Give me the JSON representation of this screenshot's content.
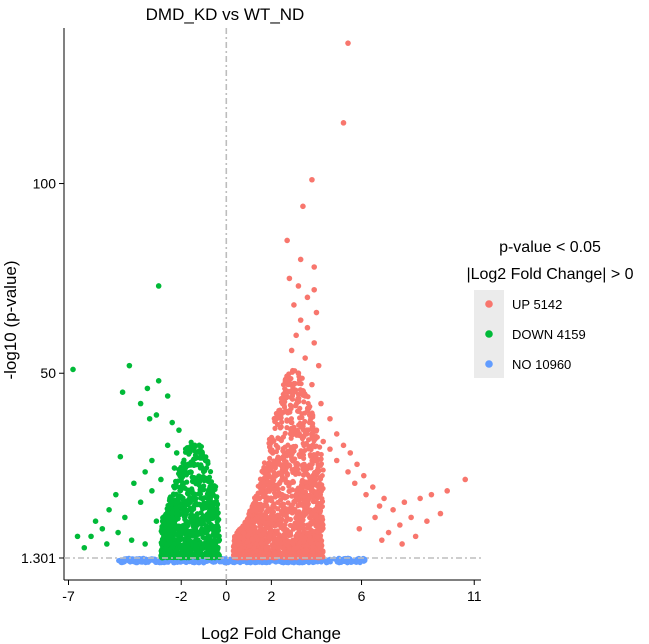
{
  "chart_data": {
    "type": "scatter",
    "title": "DMD_KD vs WT_ND",
    "xlabel": "Log2 Fold Change",
    "ylabel": "-log10 (p-value)",
    "xlim": [
      -7.2,
      11.3
    ],
    "ylim": [
      -4.5,
      141
    ],
    "x_ticks": [
      -7,
      -2,
      0,
      2,
      6,
      11
    ],
    "y_ticks": [
      1.301,
      50,
      100
    ],
    "y_tick_labels": [
      "1.301",
      "50",
      "100"
    ],
    "threshold_lines": {
      "x": 0,
      "y": 1.301
    },
    "grid": false,
    "legend": {
      "position": "right",
      "title_lines": [
        "p-value < 0.05",
        "|Log2 Fold Change| > 0"
      ],
      "entries": [
        {
          "name": "UP",
          "count": "5142",
          "color": "#f8766d"
        },
        {
          "name": "DOWN",
          "count": "4159",
          "color": "#00ba38"
        },
        {
          "name": "NO",
          "count": "10960",
          "color": "#619cff"
        }
      ]
    },
    "series": [
      {
        "name": "UP",
        "color": "#f8766d",
        "points": [
          [
            5.4,
            137
          ],
          [
            5.2,
            116
          ],
          [
            3.8,
            101
          ],
          [
            3.4,
            94
          ],
          [
            2.7,
            85
          ],
          [
            3.3,
            80
          ],
          [
            3.9,
            78
          ],
          [
            2.8,
            75
          ],
          [
            3.2,
            73
          ],
          [
            3.9,
            72
          ],
          [
            3.6,
            70
          ],
          [
            3.0,
            68
          ],
          [
            4.0,
            66
          ],
          [
            3.3,
            64
          ],
          [
            3.6,
            62
          ],
          [
            3.1,
            60
          ],
          [
            3.9,
            58
          ],
          [
            2.9,
            56
          ],
          [
            3.5,
            54
          ],
          [
            4.1,
            52
          ],
          [
            3.2,
            50
          ],
          [
            2.7,
            48
          ],
          [
            3.8,
            47
          ],
          [
            3.0,
            45
          ],
          [
            3.5,
            44
          ],
          [
            2.5,
            42
          ],
          [
            4.2,
            42
          ],
          [
            3.2,
            40
          ],
          [
            3.7,
            39
          ],
          [
            2.9,
            37
          ],
          [
            4.6,
            38
          ],
          [
            3.4,
            36
          ],
          [
            4.0,
            35
          ],
          [
            4.9,
            34
          ],
          [
            4.3,
            32
          ],
          [
            5.2,
            31
          ],
          [
            4.6,
            30
          ],
          [
            5.5,
            29
          ],
          [
            4.9,
            27
          ],
          [
            5.8,
            26
          ],
          [
            5.4,
            24
          ],
          [
            6.1,
            23
          ],
          [
            5.7,
            21
          ],
          [
            6.5,
            20
          ],
          [
            6.2,
            18
          ],
          [
            7.0,
            17
          ],
          [
            6.8,
            15
          ],
          [
            7.4,
            14
          ],
          [
            7.9,
            16
          ],
          [
            8.6,
            17
          ],
          [
            9.1,
            18
          ],
          [
            9.8,
            19
          ],
          [
            10.6,
            22
          ],
          [
            8.2,
            12
          ],
          [
            7.7,
            10
          ],
          [
            8.9,
            11
          ],
          [
            9.5,
            13
          ],
          [
            6.6,
            12
          ],
          [
            7.2,
            8
          ],
          [
            8.4,
            7
          ],
          [
            5.9,
            9
          ],
          [
            6.9,
            6
          ],
          [
            7.8,
            5
          ]
        ]
      },
      {
        "name": "DOWN",
        "color": "#00ba38",
        "points": [
          [
            -3.0,
            73
          ],
          [
            -4.3,
            52
          ],
          [
            -6.8,
            51
          ],
          [
            -3.0,
            48
          ],
          [
            -3.5,
            46
          ],
          [
            -4.6,
            45
          ],
          [
            -2.6,
            44
          ],
          [
            -3.8,
            42
          ],
          [
            -3.1,
            39
          ],
          [
            -2.4,
            37
          ],
          [
            -3.4,
            38
          ],
          [
            -2.1,
            35
          ],
          [
            -1.4,
            31
          ],
          [
            -1.2,
            31
          ],
          [
            -4.7,
            28
          ],
          [
            -2.6,
            31
          ],
          [
            -3.3,
            27
          ],
          [
            -2.2,
            29
          ],
          [
            -1.8,
            30
          ],
          [
            -3.6,
            24
          ],
          [
            -2.9,
            22
          ],
          [
            -4.1,
            21
          ],
          [
            -3.3,
            19
          ],
          [
            -4.9,
            18
          ],
          [
            -2.5,
            17
          ],
          [
            -3.8,
            16
          ],
          [
            -5.2,
            14
          ],
          [
            -4.5,
            12
          ],
          [
            -3.1,
            11
          ],
          [
            -5.5,
            9
          ],
          [
            -4.8,
            8
          ],
          [
            -6.0,
            7
          ],
          [
            -5.8,
            11
          ],
          [
            -6.6,
            7
          ],
          [
            -5.3,
            5
          ],
          [
            -4.2,
            6
          ],
          [
            -3.6,
            5
          ],
          [
            -6.3,
            4
          ],
          [
            -2.7,
            9
          ],
          [
            -2.2,
            13
          ],
          [
            -1.6,
            16
          ],
          [
            -1.1,
            11
          ],
          [
            -0.8,
            7
          ],
          [
            -0.5,
            4
          ],
          [
            -1.9,
            21
          ],
          [
            -2.3,
            25
          ]
        ]
      },
      {
        "name": "NO",
        "color": "#619cff",
        "points": [
          [
            -4.6,
            0.6
          ],
          [
            -4.2,
            1.0
          ],
          [
            -3.8,
            0.4
          ],
          [
            -3.4,
            0.9
          ],
          [
            -3.0,
            0.2
          ],
          [
            -2.6,
            0.7
          ],
          [
            -2.2,
            1.1
          ],
          [
            -1.8,
            0.3
          ],
          [
            -1.4,
            0.8
          ],
          [
            -1.0,
            0.1
          ],
          [
            -0.6,
            0.6
          ],
          [
            -0.2,
            1.0
          ],
          [
            0.2,
            0.4
          ],
          [
            0.6,
            0.9
          ],
          [
            1.0,
            0.2
          ],
          [
            1.4,
            0.7
          ],
          [
            1.8,
            1.1
          ],
          [
            2.2,
            0.3
          ],
          [
            2.6,
            0.8
          ],
          [
            3.0,
            0.1
          ],
          [
            3.4,
            0.6
          ],
          [
            3.8,
            1.0
          ],
          [
            4.2,
            0.4
          ],
          [
            4.6,
            0.9
          ],
          [
            5.0,
            0.5
          ],
          [
            5.4,
            1.2
          ],
          [
            5.8,
            0.8
          ],
          [
            6.1,
            0.5
          ]
        ]
      }
    ]
  }
}
